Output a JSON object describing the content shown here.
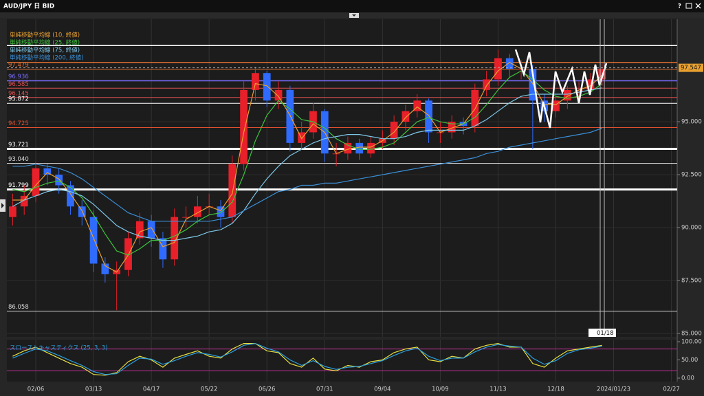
{
  "window": {
    "title": "AUD/JPY 日 BID",
    "help": "?"
  },
  "crosshair": {
    "label": "01/18"
  },
  "chart_data": [
    {
      "type": "candlestick",
      "categories": [
        null,
        null,
        "02/06",
        null,
        null,
        null,
        null,
        "03/13",
        null,
        null,
        null,
        null,
        "04/17",
        null,
        null,
        null,
        null,
        "05/22",
        null,
        null,
        null,
        null,
        "06/26",
        null,
        null,
        null,
        null,
        "07/31",
        null,
        null,
        null,
        null,
        "09/04",
        null,
        null,
        null,
        null,
        "10/09",
        null,
        null,
        null,
        null,
        "11/13",
        null,
        null,
        null,
        null,
        "12/18",
        null,
        null,
        null,
        null,
        "2024/01/23",
        null,
        null,
        null,
        null,
        "02/27"
      ],
      "open": [
        90.5,
        91.0,
        91.5,
        92.8,
        92.5,
        92.0,
        91.0,
        90.5,
        88.3,
        87.8,
        88.0,
        89.5,
        90.3,
        89.5,
        88.5,
        90.5,
        90.5,
        91.0,
        91.0,
        90.5,
        93.0,
        96.5,
        97.3,
        96.0,
        96.5,
        94.0,
        94.5,
        95.5,
        93.5,
        93.5,
        94.0,
        93.5,
        94.0,
        94.2,
        95.0,
        95.5,
        96.0,
        94.5,
        94.5,
        95.0,
        94.8,
        96.5,
        97.0,
        98.0,
        97.5,
        97.5,
        96.0,
        95.5,
        96.0,
        96.5,
        96.5,
        97.0,
        null,
        null,
        null,
        null,
        null,
        null
      ],
      "high": [
        91.6,
        92.0,
        93.1,
        93.0,
        92.8,
        92.2,
        91.3,
        90.8,
        88.6,
        88.4,
        89.8,
        90.7,
        90.6,
        89.8,
        90.9,
        91.0,
        91.5,
        91.6,
        91.3,
        93.4,
        96.9,
        97.6,
        97.4,
        96.9,
        96.7,
        95.0,
        95.9,
        95.6,
        94.0,
        94.3,
        94.2,
        94.3,
        94.6,
        95.3,
        95.8,
        96.3,
        96.1,
        95.0,
        95.3,
        95.2,
        96.8,
        97.4,
        98.4,
        98.2,
        97.9,
        97.7,
        96.3,
        96.2,
        96.7,
        96.9,
        97.3,
        97.8,
        null,
        null,
        null,
        null,
        null,
        null
      ],
      "low": [
        90.1,
        90.6,
        91.2,
        92.0,
        91.6,
        90.6,
        90.1,
        87.9,
        87.4,
        86.1,
        87.7,
        89.2,
        89.1,
        88.1,
        88.2,
        90.0,
        90.2,
        90.6,
        90.0,
        90.2,
        92.7,
        96.0,
        95.7,
        95.6,
        93.6,
        93.7,
        94.2,
        93.1,
        92.9,
        93.2,
        93.2,
        93.3,
        93.7,
        93.9,
        94.6,
        95.2,
        94.0,
        94.0,
        94.2,
        94.4,
        94.5,
        96.2,
        96.7,
        97.1,
        97.0,
        93.7,
        95.0,
        95.2,
        95.6,
        96.0,
        96.3,
        96.7,
        null,
        null,
        null,
        null,
        null,
        null
      ],
      "close": [
        91.0,
        91.5,
        92.8,
        92.5,
        92.0,
        91.0,
        90.5,
        88.3,
        87.8,
        88.0,
        89.5,
        90.3,
        89.5,
        88.5,
        90.5,
        90.5,
        91.0,
        91.0,
        90.5,
        93.0,
        96.5,
        97.3,
        96.0,
        96.5,
        94.0,
        94.5,
        95.5,
        93.5,
        93.5,
        94.0,
        93.5,
        94.0,
        94.2,
        95.0,
        95.5,
        96.0,
        94.5,
        94.5,
        95.0,
        94.8,
        96.5,
        97.0,
        98.0,
        97.5,
        97.5,
        96.0,
        95.5,
        96.0,
        96.5,
        96.5,
        97.0,
        97.5,
        null,
        null,
        null,
        null,
        null,
        null
      ],
      "up_color": "#e8202a",
      "down_color": "#2f6bff",
      "series": [
        {
          "name": "単純移動平均線 (10, 終値)",
          "color": "#e8a030",
          "values": [
            91.3,
            91.3,
            92.0,
            92.6,
            92.3,
            91.6,
            90.8,
            89.5,
            88.2,
            87.9,
            88.7,
            89.8,
            90.0,
            89.1,
            89.3,
            90.4,
            90.7,
            91.0,
            90.8,
            91.6,
            94.5,
            96.8,
            96.7,
            96.2,
            95.3,
            94.2,
            94.9,
            94.5,
            93.5,
            93.7,
            93.8,
            93.8,
            94.1,
            94.5,
            95.2,
            95.7,
            95.3,
            94.5,
            94.7,
            94.9,
            95.6,
            96.7,
            97.4,
            97.8,
            97.5,
            96.8,
            95.8,
            95.8,
            96.2,
            96.5,
            96.7,
            97.2,
            null,
            null,
            null,
            null,
            null,
            null
          ]
        },
        {
          "name": "単純移動平均線 (25, 終値)",
          "color": "#3cc43c",
          "values": [
            91.8,
            91.7,
            91.9,
            92.1,
            92.2,
            91.9,
            91.4,
            90.6,
            89.7,
            88.9,
            88.7,
            89.0,
            89.4,
            89.4,
            89.6,
            89.9,
            90.3,
            90.6,
            90.7,
            91.2,
            92.5,
            94.1,
            95.3,
            96.0,
            95.6,
            95.1,
            95.0,
            94.7,
            94.2,
            93.9,
            93.7,
            93.7,
            93.8,
            94.0,
            94.5,
            95.0,
            95.2,
            95.0,
            94.9,
            94.9,
            95.2,
            95.8,
            96.5,
            97.1,
            97.4,
            97.0,
            96.5,
            96.2,
            96.1,
            96.2,
            96.4,
            96.8,
            null,
            null,
            null,
            null,
            null,
            null
          ]
        },
        {
          "name": "単純移動平均線 (75, 終値)",
          "color": "#7ec8e8",
          "values": [
            91.0,
            91.3,
            91.5,
            91.7,
            91.8,
            91.7,
            91.5,
            91.1,
            90.6,
            90.1,
            89.8,
            89.6,
            89.5,
            89.4,
            89.4,
            89.5,
            89.6,
            89.8,
            89.9,
            90.2,
            90.8,
            91.6,
            92.3,
            92.9,
            93.4,
            93.7,
            94.0,
            94.2,
            94.3,
            94.4,
            94.4,
            94.3,
            94.2,
            94.2,
            94.3,
            94.5,
            94.6,
            94.6,
            94.6,
            94.6,
            94.8,
            95.1,
            95.5,
            95.9,
            96.2,
            96.3,
            96.3,
            96.3,
            96.3,
            96.4,
            96.5,
            96.6,
            null,
            null,
            null,
            null,
            null,
            null
          ]
        },
        {
          "name": "単純移動平均線 (200, 終値)",
          "color": "#3a8fd8",
          "values": [
            92.9,
            92.9,
            93.0,
            92.9,
            92.8,
            92.6,
            92.3,
            91.9,
            91.5,
            91.1,
            90.7,
            90.5,
            90.3,
            90.3,
            90.3,
            90.3,
            90.3,
            90.3,
            90.4,
            90.5,
            90.8,
            91.1,
            91.4,
            91.7,
            91.8,
            92.0,
            92.0,
            92.1,
            92.1,
            92.2,
            92.3,
            92.4,
            92.5,
            92.6,
            92.7,
            92.8,
            92.9,
            93.0,
            93.1,
            93.2,
            93.3,
            93.5,
            93.6,
            93.8,
            93.9,
            94.0,
            94.1,
            94.2,
            94.3,
            94.4,
            94.5,
            94.7,
            null,
            null,
            null,
            null,
            null,
            null
          ]
        }
      ],
      "ylim": [
        84.84,
        99.84
      ],
      "yticks": [
        {
          "value": 85,
          "label": "85.000"
        },
        {
          "value": 87.5,
          "label": "87.500"
        },
        {
          "value": 90,
          "label": "90.000"
        },
        {
          "value": 92.5,
          "label": "92.500"
        },
        {
          "value": 95,
          "label": "95.000"
        }
      ],
      "levels": [
        {
          "value": 97.479,
          "color": "#e07030",
          "width": 1
        },
        {
          "value": 96.936,
          "color": "#7a6cff",
          "width": 1.5
        },
        {
          "value": 96.585,
          "color": "#e05050",
          "width": 1
        },
        {
          "value": 96.145,
          "color": "#e05050",
          "width": 1
        },
        {
          "value": 95.872,
          "color": "#ffffff",
          "width": 1
        },
        {
          "value": 94.725,
          "color": "#e05030",
          "width": 1
        },
        {
          "value": 93.721,
          "color": "#ffffff",
          "width": 3
        },
        {
          "value": 93.04,
          "label": "93.040",
          "color": "#dddddd",
          "width": 1
        },
        {
          "value": 91.799,
          "color": "#ffffff",
          "width": 3
        },
        {
          "value": 86.058,
          "color": "#dddddd",
          "width": 1
        }
      ],
      "lines": [
        {
          "value": 98.6,
          "color": "#ffffff"
        },
        {
          "value": 97.8,
          "color": "#e07030"
        }
      ],
      "current_price": 97.547,
      "current_color": "#e8a030",
      "grid": true
    },
    {
      "type": "line",
      "title": "スローストキャスティクス (25, 3, 3)",
      "series": [
        {
          "color": "#e8e040",
          "values": [
            60,
            75,
            85,
            70,
            55,
            40,
            30,
            10,
            8,
            15,
            45,
            60,
            50,
            30,
            55,
            65,
            75,
            60,
            55,
            80,
            95,
            95,
            75,
            70,
            40,
            30,
            55,
            25,
            20,
            35,
            30,
            45,
            50,
            70,
            80,
            85,
            50,
            45,
            60,
            55,
            80,
            90,
            95,
            85,
            85,
            40,
            30,
            55,
            75,
            80,
            85,
            90,
            null,
            null,
            null,
            null,
            null,
            null
          ]
        },
        {
          "color": "#2aa0e0",
          "values": [
            55,
            68,
            80,
            75,
            62,
            48,
            35,
            18,
            10,
            12,
            35,
            55,
            52,
            38,
            48,
            60,
            70,
            65,
            58,
            72,
            90,
            95,
            82,
            72,
            50,
            35,
            48,
            32,
            24,
            30,
            32,
            40,
            48,
            62,
            75,
            82,
            60,
            48,
            55,
            55,
            72,
            85,
            92,
            88,
            85,
            55,
            38,
            48,
            68,
            78,
            82,
            88,
            null,
            null,
            null,
            null,
            null,
            null
          ]
        }
      ],
      "levels": [
        80,
        20
      ],
      "level_color": "#c0309a",
      "ylim": [
        0,
        100
      ],
      "yticks": [
        {
          "value": 100,
          "label": "100.00"
        },
        {
          "value": 50,
          "label": "50.00"
        },
        {
          "value": 0,
          "label": "0.00"
        }
      ]
    }
  ]
}
